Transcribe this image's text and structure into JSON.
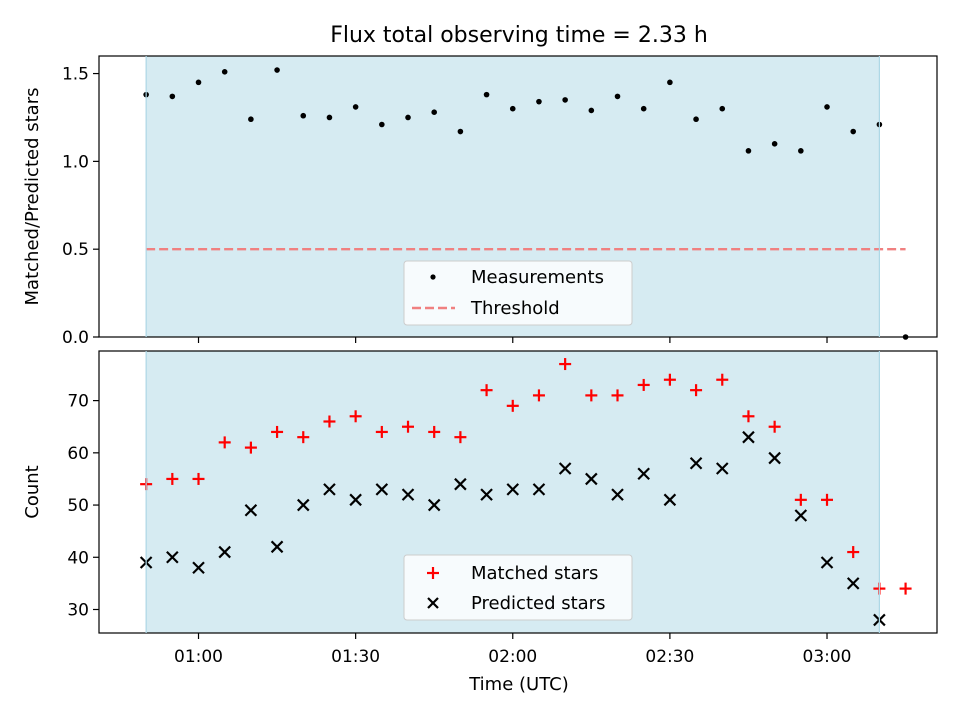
{
  "title": "Flux total observing time = 2.33 h",
  "xlabel": "Time (UTC)",
  "chart_data": [
    {
      "type": "scatter",
      "panel": "top",
      "ylabel": "Matched/Predicted stars",
      "ylim": [
        0,
        1.6
      ],
      "yticks": [
        0.0,
        0.5,
        1.0,
        1.5
      ],
      "ytick_labels": [
        "0.0",
        "0.5",
        "1.0",
        "1.5"
      ],
      "xlim": [
        "00:41",
        "03:21"
      ],
      "xticks": [
        "01:00",
        "01:30",
        "02:00",
        "02:30",
        "03:00"
      ],
      "shaded_span": [
        "00:50",
        "03:10"
      ],
      "shaded_color": "#add8e6",
      "series": [
        {
          "name": "Measurements",
          "marker": "dot",
          "color": "#000000",
          "x": [
            "00:50",
            "00:55",
            "01:00",
            "01:05",
            "01:10",
            "01:15",
            "01:20",
            "01:25",
            "01:30",
            "01:35",
            "01:40",
            "01:45",
            "01:50",
            "01:55",
            "02:00",
            "02:05",
            "02:10",
            "02:15",
            "02:20",
            "02:25",
            "02:30",
            "02:35",
            "02:40",
            "02:45",
            "02:50",
            "02:55",
            "03:00",
            "03:05",
            "03:10",
            "03:15"
          ],
          "y": [
            1.38,
            1.37,
            1.45,
            1.51,
            1.24,
            1.52,
            1.26,
            1.25,
            1.31,
            1.21,
            1.25,
            1.28,
            1.17,
            1.38,
            1.3,
            1.34,
            1.35,
            1.29,
            1.37,
            1.3,
            1.45,
            1.24,
            1.3,
            1.06,
            1.1,
            1.06,
            1.31,
            1.17,
            1.21,
            0.0
          ]
        },
        {
          "name": "Threshold",
          "line": "dashed",
          "color": "#f08080",
          "x": [
            "00:50",
            "03:15"
          ],
          "y": [
            0.5,
            0.5
          ]
        }
      ],
      "legend": "lower-center"
    },
    {
      "type": "scatter",
      "panel": "bottom",
      "ylabel": "Count",
      "ylim": [
        25.5,
        79.5
      ],
      "yticks": [
        30,
        40,
        50,
        60,
        70
      ],
      "ytick_labels": [
        "30",
        "40",
        "50",
        "60",
        "70"
      ],
      "xlim": [
        "00:41",
        "03:21"
      ],
      "xticks": [
        "01:00",
        "01:30",
        "02:00",
        "02:30",
        "03:00"
      ],
      "xtick_labels": [
        "01:00",
        "01:30",
        "02:00",
        "02:30",
        "03:00"
      ],
      "shaded_span": [
        "00:50",
        "03:10"
      ],
      "shaded_color": "#add8e6",
      "series": [
        {
          "name": "Matched stars",
          "marker": "plus",
          "color": "#ff0000",
          "x": [
            "00:50",
            "00:55",
            "01:00",
            "01:05",
            "01:10",
            "01:15",
            "01:20",
            "01:25",
            "01:30",
            "01:35",
            "01:40",
            "01:45",
            "01:50",
            "01:55",
            "02:00",
            "02:05",
            "02:10",
            "02:15",
            "02:20",
            "02:25",
            "02:30",
            "02:35",
            "02:40",
            "02:45",
            "02:50",
            "02:55",
            "03:00",
            "03:05",
            "03:10",
            "03:15"
          ],
          "y": [
            54,
            55,
            55,
            62,
            61,
            64,
            63,
            66,
            67,
            64,
            65,
            64,
            63,
            72,
            69,
            71,
            77,
            71,
            71,
            73,
            74,
            72,
            74,
            67,
            65,
            51,
            51,
            41,
            34,
            34
          ]
        },
        {
          "name": "Predicted stars",
          "marker": "x",
          "color": "#000000",
          "x": [
            "00:50",
            "00:55",
            "01:00",
            "01:05",
            "01:10",
            "01:15",
            "01:20",
            "01:25",
            "01:30",
            "01:35",
            "01:40",
            "01:45",
            "01:50",
            "01:55",
            "02:00",
            "02:05",
            "02:10",
            "02:15",
            "02:20",
            "02:25",
            "02:30",
            "02:35",
            "02:40",
            "02:45",
            "02:50",
            "02:55",
            "03:00",
            "03:05",
            "03:10"
          ],
          "y": [
            39,
            40,
            38,
            41,
            49,
            42,
            50,
            53,
            51,
            53,
            52,
            50,
            54,
            52,
            53,
            53,
            57,
            55,
            52,
            56,
            51,
            58,
            57,
            63,
            59,
            48,
            39,
            35,
            28
          ]
        }
      ],
      "legend": "lower-center"
    }
  ]
}
